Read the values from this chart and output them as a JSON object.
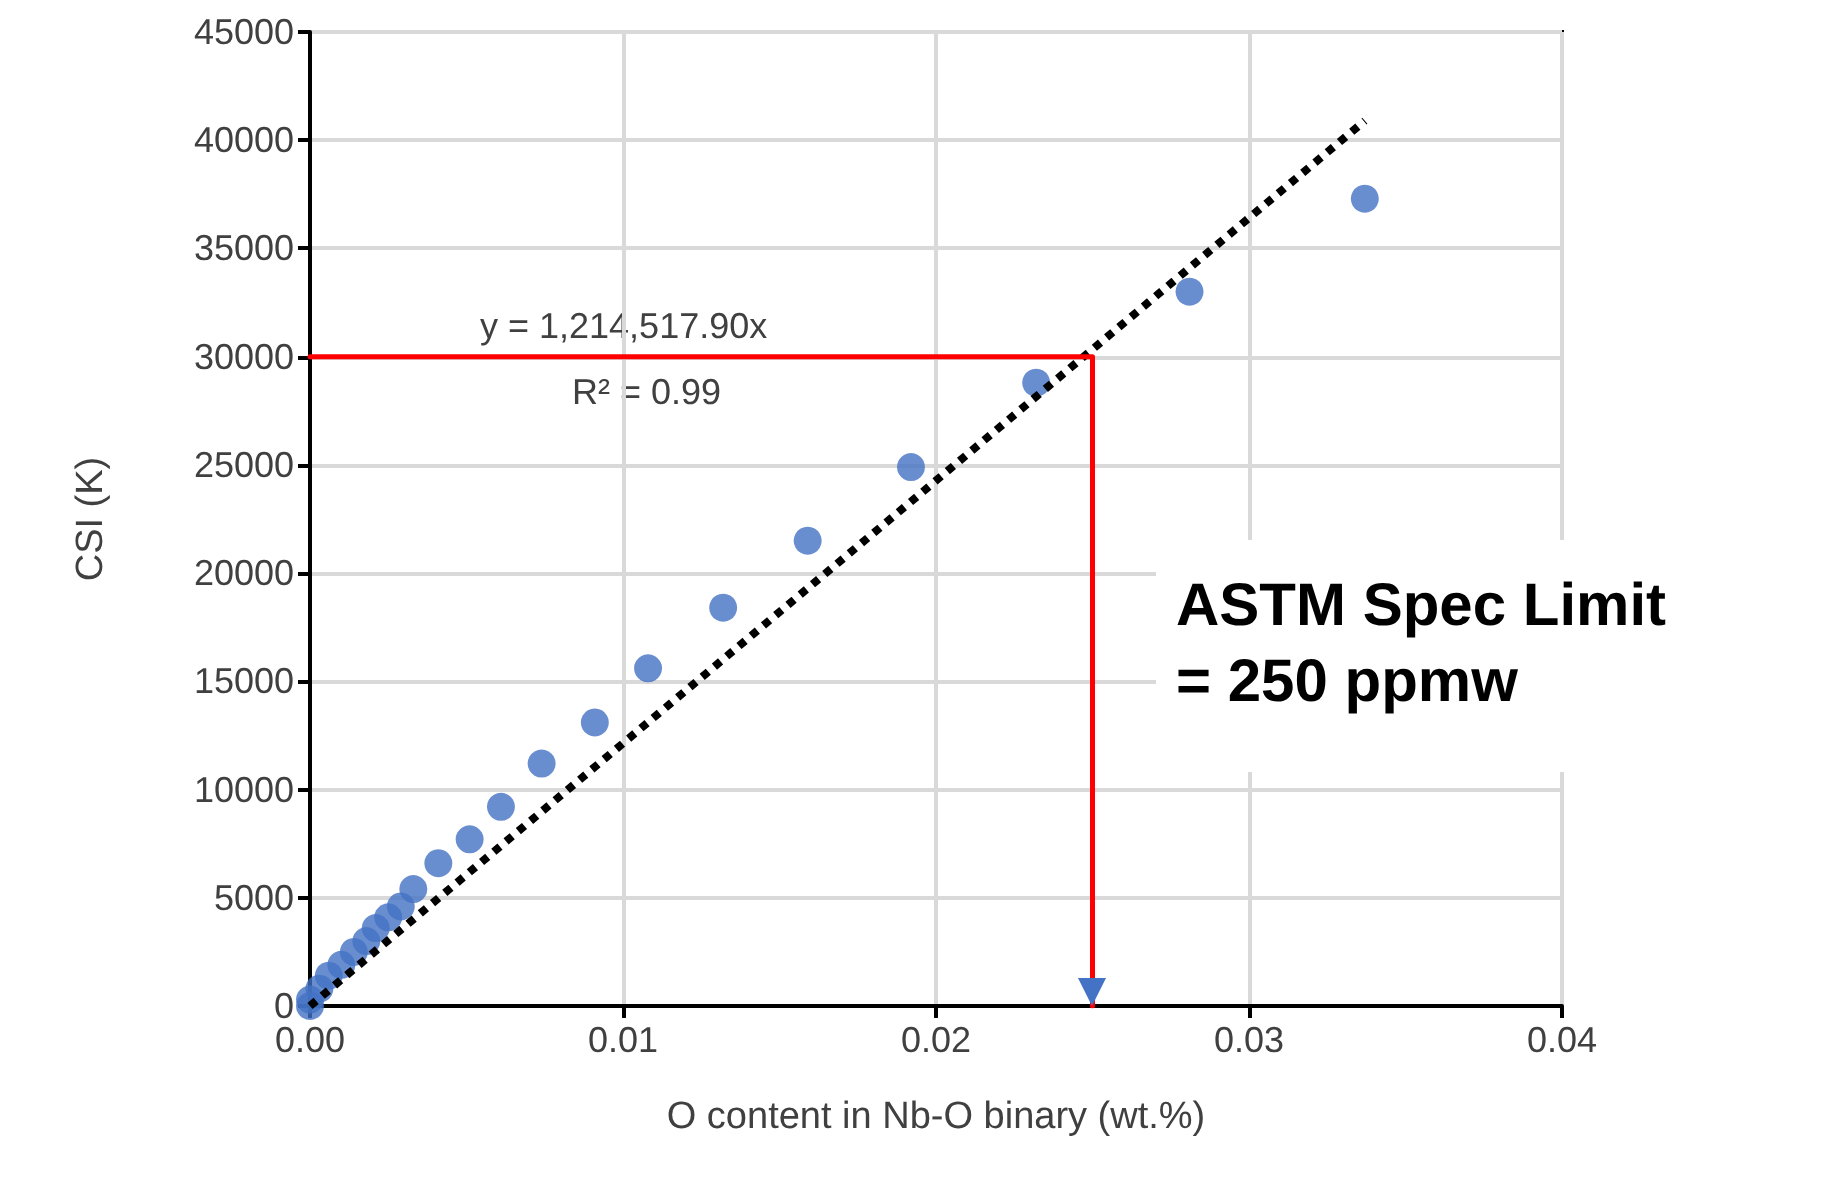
{
  "chart_data": {
    "type": "scatter",
    "xlabel": "O content in Nb-O binary (wt.%)",
    "ylabel": "CSI (K)",
    "xlim": [
      0,
      0.04
    ],
    "xticks": [
      {
        "value": 0,
        "label": "0.00"
      },
      {
        "value": 0.01,
        "label": "0.01"
      },
      {
        "value": 0.02,
        "label": "0.02"
      },
      {
        "value": 0.03,
        "label": "0.03"
      },
      {
        "value": 0.04,
        "label": "0.04"
      }
    ],
    "ylim": [
      0,
      45000
    ],
    "yticks": [
      0,
      5000,
      10000,
      15000,
      20000,
      25000,
      30000,
      35000,
      40000,
      45000
    ],
    "grid": true,
    "marker": "circle",
    "series": [
      {
        "color": "#4472c4",
        "x": [
          0,
          0,
          0.0003,
          0.0006,
          0.001,
          0.0014,
          0.0018,
          0.0021,
          0.0025,
          0.0029,
          0.0033,
          0.0041,
          0.0051,
          0.0061,
          0.0074,
          0.0091,
          0.0108,
          0.0132,
          0.0159,
          0.0192,
          0.0232,
          0.0281,
          0.0337
        ],
        "values": [
          0,
          300,
          800,
          1400,
          1900,
          2500,
          3000,
          3600,
          4100,
          4600,
          5400,
          6600,
          7700,
          9200,
          11200,
          13100,
          15600,
          18400,
          21500,
          24900,
          28800,
          33000,
          37300
        ]
      },
      {
        "type": "line",
        "color": "#000000",
        "line_style": "dotted",
        "marker": "none",
        "x": [
          0,
          0.0337
        ],
        "values": [
          0,
          40900
        ]
      },
      {
        "type": "line",
        "color": "#ff0000",
        "line_style": "solid",
        "marker": "none",
        "x": [
          0,
          0.025,
          0.025
        ],
        "values": [
          30000,
          30000,
          0
        ]
      }
    ],
    "annotations": [
      "y = 1,214,517.90x",
      "R² = 0.99",
      "ASTM Spec Limit\n= 250 ppmw"
    ]
  }
}
